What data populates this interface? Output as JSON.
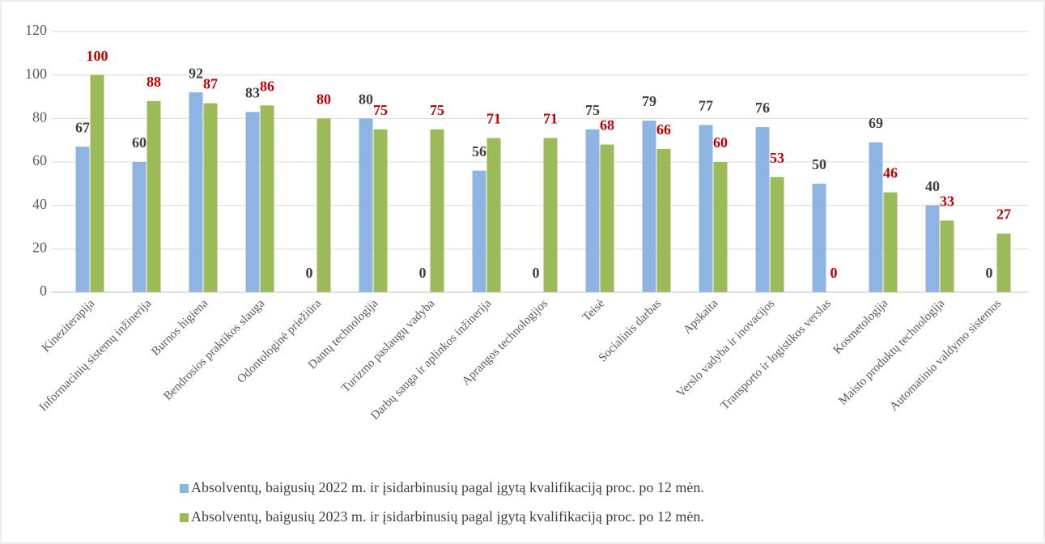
{
  "chart_data": {
    "type": "bar",
    "categories": [
      "Kineziterapija",
      "Informacinių sistemų inžinerija",
      "Burnos higiena",
      "Bendrosios praktikos slauga",
      "Odontologinė priežiūra",
      "Dantų technologija",
      "Turizmo paslaugų vadyba",
      "Darbų sauga ir aplinkos inžinerija",
      "Aprangos technologijos",
      "Teisė",
      "Socialinis darbas",
      "Apskaita",
      "Verslo vadyba ir inovacijos",
      "Transporto ir logistikos verslas",
      "Kosmetologija",
      "Maisto produktų technologija",
      "Automatinio valdymo sistemos"
    ],
    "series": [
      {
        "name": "Absolventų, baigusių 2022 m. ir įsidarbinusių pagal įgytą kvalifikaciją proc. po 12 mėn.",
        "color": "#8db4e2",
        "label_color": "#404040",
        "values": [
          67,
          60,
          92,
          83,
          0,
          80,
          0,
          56,
          0,
          75,
          79,
          77,
          76,
          50,
          69,
          40,
          0
        ]
      },
      {
        "name": "Absolventų, baigusių 2023 m. ir įsidarbinusių pagal įgytą kvalifikaciją proc. po 12 mėn.",
        "color": "#9bbb59",
        "label_color": "#c00000",
        "values": [
          100,
          88,
          87,
          86,
          80,
          75,
          75,
          71,
          71,
          68,
          66,
          60,
          53,
          0,
          46,
          33,
          27
        ]
      }
    ],
    "ylim": [
      0,
      120
    ],
    "yticks": [
      0,
      20,
      40,
      60,
      80,
      100,
      120
    ],
    "grid": true,
    "legend": "bottom"
  }
}
